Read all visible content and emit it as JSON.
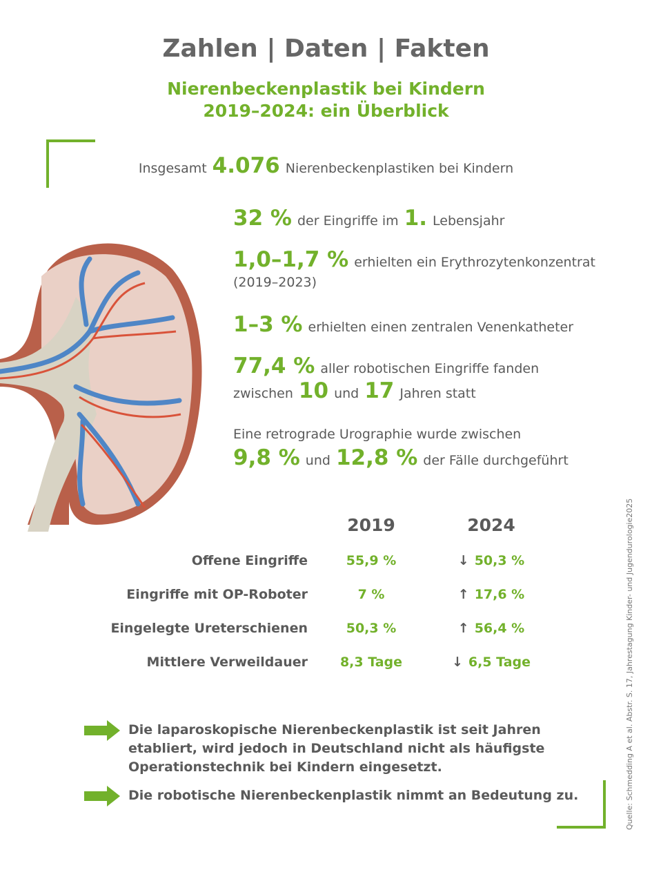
{
  "header": {
    "title": "Zahlen | Daten | Fakten",
    "subtitle": [
      "Nierenbeckenplastik bei Kindern",
      "2019–2024: ein Überblick"
    ]
  },
  "total": [
    {
      "text": "Insgesamt",
      "highlight": false
    },
    {
      "text": "4.076",
      "highlight": true
    },
    {
      "text": "Nierenbeckenplastiken bei Kindern",
      "highlight": false
    }
  ],
  "facts": [
    [
      [
        {
          "text": "32 %",
          "highlight": true
        },
        {
          "text": "der Eingriffe im",
          "highlight": false
        },
        {
          "text": "1.",
          "highlight": true
        },
        {
          "text": "Lebensjahr",
          "highlight": false
        }
      ]
    ],
    [
      [
        {
          "text": "1,0–1,7 %",
          "highlight": true
        },
        {
          "text": "erhielten ein Erythrozytenkonzentrat",
          "highlight": false
        }
      ],
      [
        {
          "text": "(2019–2023)",
          "highlight": false
        }
      ]
    ],
    [
      [
        {
          "text": "1–3 %",
          "highlight": true
        },
        {
          "text": "erhielten einen zentralen Venenkatheter",
          "highlight": false
        }
      ]
    ],
    [
      [
        {
          "text": "77,4 %",
          "highlight": true
        },
        {
          "text": "aller robotischen Eingriffe fanden",
          "highlight": false
        }
      ],
      [
        {
          "text": "zwischen",
          "highlight": false
        },
        {
          "text": "10",
          "highlight": true
        },
        {
          "text": "und",
          "highlight": false
        },
        {
          "text": "17",
          "highlight": true
        },
        {
          "text": "Jahren statt",
          "highlight": false
        }
      ]
    ],
    [
      [
        {
          "text": "Eine retrograde Urographie wurde zwischen",
          "highlight": false
        }
      ],
      [
        {
          "text": "9,8 %",
          "highlight": true
        },
        {
          "text": "und",
          "highlight": false
        },
        {
          "text": "12,8 %",
          "highlight": true
        },
        {
          "text": "der Fälle durchgeführt",
          "highlight": false
        }
      ]
    ]
  ],
  "table": {
    "columns": [
      "2019",
      "2024"
    ],
    "rows": [
      {
        "label": "Offene Eingriffe",
        "first": "55,9 %",
        "trend": "↓",
        "last": "50,3 %"
      },
      {
        "label": "Eingriffe mit OP-Roboter",
        "first": "7 %",
        "trend": "↑",
        "last": "17,6 %"
      },
      {
        "label": "Eingelegte Ureterschienen",
        "first": "50,3 %",
        "trend": "↑",
        "last": "56,4 %"
      },
      {
        "label": "Mittlere Verweildauer",
        "first": "8,3 Tage",
        "trend": "↓",
        "last": "6,5 Tage"
      }
    ]
  },
  "conclusions": [
    [
      "Die laparoskopische Nierenbeckenplastik ist seit Jahren",
      "etabliert, wird jedoch in Deutschland nicht als häufigste",
      "Operationstechnik bei Kindern eingesetzt."
    ],
    [
      "Die robotische Nierenbeckenplastik nimmt an Bedeutung zu."
    ]
  ],
  "source": "Quelle: Schmedding A et al. Abstr. S. 17, Jahrestagung Kinder- und Jugendurologie2025"
}
